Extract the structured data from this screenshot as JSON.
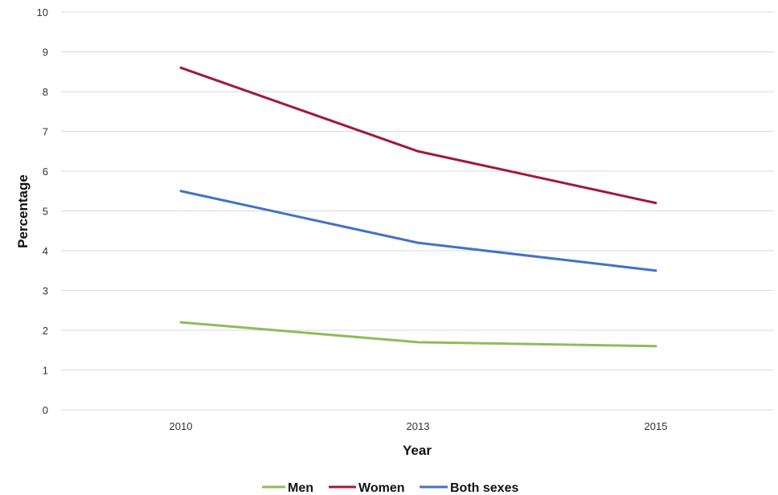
{
  "chart_data": {
    "type": "line",
    "title": "",
    "xlabel": "Year",
    "ylabel": "Percentage",
    "categories": [
      "2010",
      "2013",
      "2015"
    ],
    "ylim": [
      0,
      10
    ],
    "yticks": [
      "0",
      "1",
      "2",
      "3",
      "4",
      "5",
      "6",
      "7",
      "8",
      "9",
      "10"
    ],
    "grid": true,
    "legend_position": "bottom",
    "series": [
      {
        "name": "Men",
        "color": "#8fbc5a",
        "values": [
          2.2,
          1.7,
          1.6
        ]
      },
      {
        "name": "Women",
        "color": "#9e1b3c",
        "values": [
          8.6,
          6.5,
          5.2
        ]
      },
      {
        "name": "Both sexes",
        "color": "#4472c4",
        "values": [
          5.5,
          4.2,
          3.5
        ]
      }
    ]
  }
}
